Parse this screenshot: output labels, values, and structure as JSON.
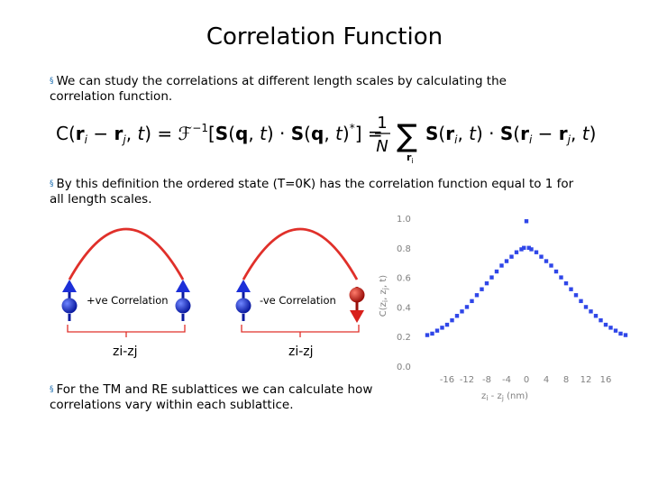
{
  "slide": {
    "title": "Correlation Function",
    "bullets": [
      "We can study the correlations at different length scales by calculating the correlation function.",
      "By this definition the ordered state (T=0K) has the correlation function equal to 1 for all length scales.",
      "For the TM and RE sublattices we can calculate how correlations vary within each sublattice."
    ],
    "bullet_marker": "§"
  },
  "formula": {
    "lhs": "C(r",
    "ft": "ℱ",
    "inv": "−1",
    "norm_num": "1",
    "norm_den": "N",
    "sum_sub": "r"
  },
  "diagrams": {
    "positive": {
      "label": "+ve Correlation",
      "axis": "zi-zj"
    },
    "negative": {
      "label": "-ve Correlation",
      "axis": "zi-zj"
    },
    "colors": {
      "arc": "#e0302a",
      "spin_up": "#1c2fd8",
      "spin_down": "#d8201c"
    }
  },
  "chart_data": {
    "type": "scatter",
    "xlabel": "zi - zj (nm)",
    "ylabel": "C(zi, zj, t)",
    "xlim": [
      -20,
      20
    ],
    "ylim": [
      0,
      1.0
    ],
    "xticks": [
      -16,
      -12,
      -8,
      -4,
      0,
      4,
      8,
      12,
      16
    ],
    "yticks": [
      "0.0",
      "0.2",
      "0.4",
      "0.6",
      "0.8",
      "1.0"
    ],
    "color": "#2f46e8",
    "x": [
      -20,
      -19,
      -18,
      -17,
      -16,
      -15,
      -14,
      -13,
      -12,
      -11,
      -10,
      -9,
      -8,
      -7,
      -6,
      -5,
      -4,
      -3,
      -2,
      -1,
      -0.5,
      0,
      0.5,
      1,
      2,
      3,
      4,
      5,
      6,
      7,
      8,
      9,
      10,
      11,
      12,
      13,
      14,
      15,
      16,
      17,
      18,
      19,
      20
    ],
    "y": [
      0.21,
      0.22,
      0.24,
      0.26,
      0.28,
      0.31,
      0.34,
      0.37,
      0.4,
      0.44,
      0.48,
      0.52,
      0.56,
      0.6,
      0.64,
      0.68,
      0.71,
      0.74,
      0.77,
      0.79,
      0.8,
      0.98,
      0.8,
      0.79,
      0.77,
      0.74,
      0.71,
      0.68,
      0.64,
      0.6,
      0.56,
      0.52,
      0.48,
      0.44,
      0.4,
      0.37,
      0.34,
      0.31,
      0.28,
      0.26,
      0.24,
      0.22,
      0.21
    ]
  }
}
